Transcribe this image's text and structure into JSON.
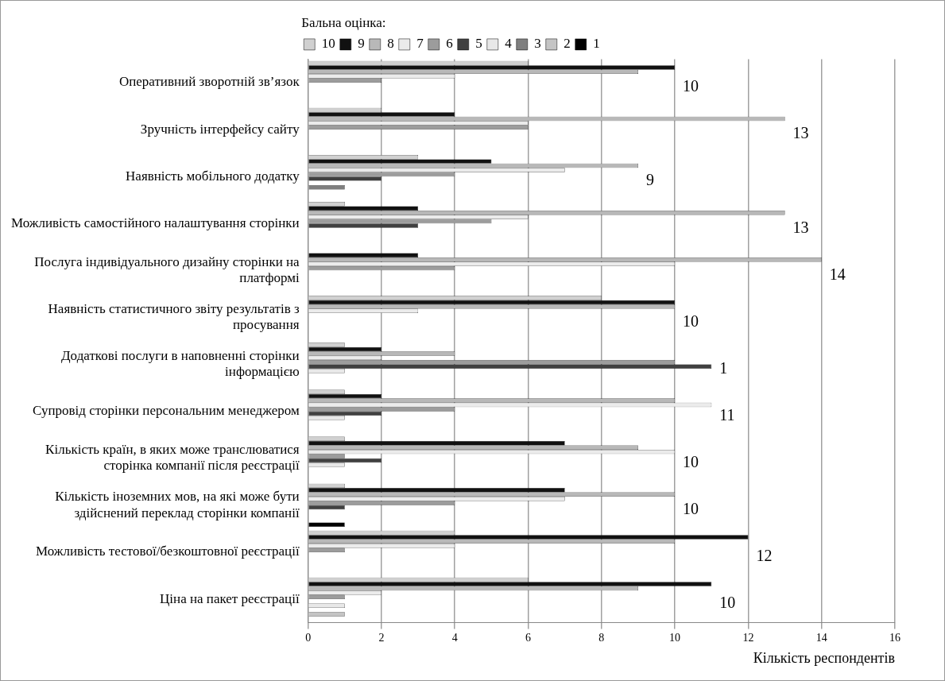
{
  "chart_data": {
    "type": "bar",
    "orientation": "horizontal",
    "legend_title": "Бальна оцінка:",
    "xlabel": "Кількість респондентів",
    "categories": [
      "Оперативний зворотній зв’язок",
      "Зручність інтерфейсу сайту",
      "Наявність мобільного додатку",
      "Можливість самостійного налаштування сторінки",
      "Послуга індивідуального дизайну сторінки на платформі",
      "Наявність статистичного звіту результатів з просування",
      "Додаткові послуги в наповненні сторінки інформацією",
      "Супровід сторінки персональним менеджером",
      "Кількість країн, в яких може транслюватися сторінка компанії після реєстрації",
      "Кількість іноземних мов, на які може бути здійснений переклад сторінки компанії",
      "Можливість тестової/безкоштовної реєстрації",
      "Ціна на пакет реєстрації"
    ],
    "series": [
      {
        "name": "10",
        "color": "#d0d0d0",
        "values": [
          6,
          2,
          3,
          1,
          0,
          8,
          1,
          1,
          1,
          1,
          4,
          6
        ]
      },
      {
        "name": "9",
        "color": "#111111",
        "values": [
          10,
          4,
          5,
          3,
          3,
          10,
          2,
          2,
          7,
          7,
          12,
          11
        ]
      },
      {
        "name": "8",
        "color": "#b8b8b8",
        "values": [
          9,
          13,
          9,
          13,
          14,
          10,
          4,
          10,
          9,
          10,
          10,
          9
        ]
      },
      {
        "name": "7",
        "color": "#ebebeb",
        "values": [
          4,
          6,
          7,
          6,
          10,
          3,
          2,
          11,
          10,
          7,
          4,
          2
        ]
      },
      {
        "name": "6",
        "color": "#9c9c9c",
        "values": [
          2,
          6,
          4,
          5,
          4,
          0,
          10,
          4,
          1,
          4,
          1,
          1
        ]
      },
      {
        "name": "5",
        "color": "#404040",
        "values": [
          0,
          0,
          2,
          3,
          0,
          0,
          11,
          2,
          2,
          1,
          0,
          0
        ]
      },
      {
        "name": "4",
        "color": "#e8e8e8",
        "values": [
          0,
          0,
          0,
          0,
          0,
          0,
          1,
          1,
          1,
          0,
          0,
          1
        ]
      },
      {
        "name": "3",
        "color": "#7f7f7f",
        "values": [
          0,
          0,
          1,
          0,
          0,
          0,
          0,
          0,
          0,
          0,
          0,
          0
        ]
      },
      {
        "name": "2",
        "color": "#c4c4c4",
        "values": [
          0,
          0,
          0,
          0,
          0,
          0,
          0,
          0,
          0,
          0,
          0,
          1
        ]
      },
      {
        "name": "1",
        "color": "#000000",
        "values": [
          0,
          0,
          0,
          0,
          0,
          0,
          0,
          0,
          0,
          1,
          0,
          0
        ]
      }
    ],
    "xlim": [
      0,
      16
    ],
    "xticks": [
      0,
      2,
      4,
      6,
      8,
      10,
      12,
      14,
      16
    ],
    "grid": "x",
    "legend": "top",
    "annotations": [
      "10",
      "13",
      "9",
      "13",
      "14",
      "10",
      "1",
      "11",
      "10",
      "10",
      "12",
      "10"
    ]
  }
}
